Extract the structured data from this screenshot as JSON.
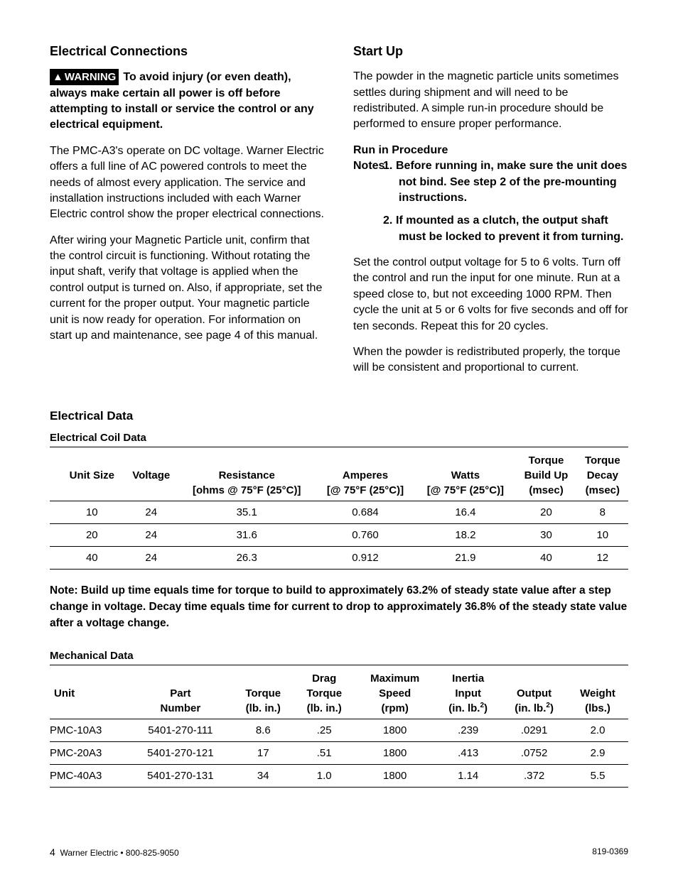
{
  "left": {
    "h1": "Electrical Connections",
    "warning_label": "WARNING",
    "warning_text": "To avoid injury (or even death), always make certain all power is off before attempting to install or service the control or any electrical equipment.",
    "p1": "The PMC-A3's operate on DC voltage. Warner Electric offers a full line of AC powered controls to meet the needs of almost every application. The service and installation instructions included with each Warner Electric control show the proper electrical connections.",
    "p2": "After wiring your Magnetic Particle unit, confirm that the control circuit is functioning. Without rotating the input shaft, verify that voltage is applied when the control output is turned on. Also, if appropriate, set the current for the proper output. Your magnetic particle unit is now ready for operation. For information on start up and maintenance, see page 4 of this manual."
  },
  "right": {
    "h1": "Start Up",
    "p1": "The powder in the magnetic particle units sometimes settles during shipment and will need to be redistributed. A simple run-in procedure should be performed to ensure proper performance.",
    "run_head": "Run in Procedure",
    "notes_label": "Notes:",
    "note1": "Before running in, make sure the unit does not bind. See step 2 of the pre-mounting instructions.",
    "note2": "If mounted as a clutch, the output shaft must be locked to prevent  it from turning.",
    "p2": "Set the control output voltage for 5 to 6 volts. Turn off the control and run the input for one minute. Run at a speed close to, but not exceeding 1000 RPM. Then cycle the unit at 5 or 6 volts for five seconds and off for ten seconds. Repeat this for 20 cycles.",
    "p3": "When the powder is redistributed properly, the torque will be consistent and proportional to current."
  },
  "elec": {
    "section": "Electrical Data",
    "sub": "Electrical Coil Data",
    "headers": {
      "c1": "Unit Size",
      "c2": "Voltage",
      "c3a": "Resistance",
      "c3b": "[ohms @ 75°F (25°C)]",
      "c4a": "Amperes",
      "c4b": "[@ 75°F (25°C)]",
      "c5a": "Watts",
      "c5b": "[@ 75°F (25°C)]",
      "c6a": "Torque",
      "c6b": "Build Up",
      "c6c": "(msec)",
      "c7a": "Torque",
      "c7b": "Decay",
      "c7c": "(msec)"
    },
    "rows": [
      [
        "10",
        "24",
        "35.1",
        "0.684",
        "16.4",
        "20",
        "8"
      ],
      [
        "20",
        "24",
        "31.6",
        "0.760",
        "18.2",
        "30",
        "10"
      ],
      [
        "40",
        "24",
        "26.3",
        "0.912",
        "21.9",
        "40",
        "12"
      ]
    ],
    "note_label": "Note:",
    "note": "Build up time equals time for torque to build to approximately 63.2% of steady state value after a step change in voltage. Decay time equals time for current to drop to approximately 36.8% of the steady state value after a voltage change."
  },
  "mech": {
    "sub": "Mechanical Data",
    "headers": {
      "c1": "Unit",
      "c2a": "Part",
      "c2b": "Number",
      "c3a": "Torque",
      "c3b": "(lb. in.)",
      "c4a": "Drag",
      "c4b": "Torque",
      "c4c": "(lb. in.)",
      "c5a": "Maximum",
      "c5b": "Speed",
      "c5c": "(rpm)",
      "c6a": "Inertia",
      "c6b": "Input",
      "c6c_pre": "(in. lb.",
      "c6c_post": ")",
      "c7a": "Output",
      "c7b_pre": "(in. lb.",
      "c7b_post": ")",
      "c8a": "Weight",
      "c8b": "(lbs.)"
    },
    "rows": [
      [
        "PMC-10A3",
        "5401-270-111",
        "8.6",
        ".25",
        "1800",
        ".239",
        ".0291",
        "2.0"
      ],
      [
        "PMC-20A3",
        "5401-270-121",
        "17",
        ".51",
        "1800",
        ".413",
        ".0752",
        "2.9"
      ],
      [
        "PMC-40A3",
        "5401-270-131",
        "34",
        "1.0",
        "1800",
        "1.14",
        ".372",
        "5.5"
      ]
    ]
  },
  "footer": {
    "page": "4",
    "left": "Warner Electric • 800-825-9050",
    "right": "819-0369"
  }
}
